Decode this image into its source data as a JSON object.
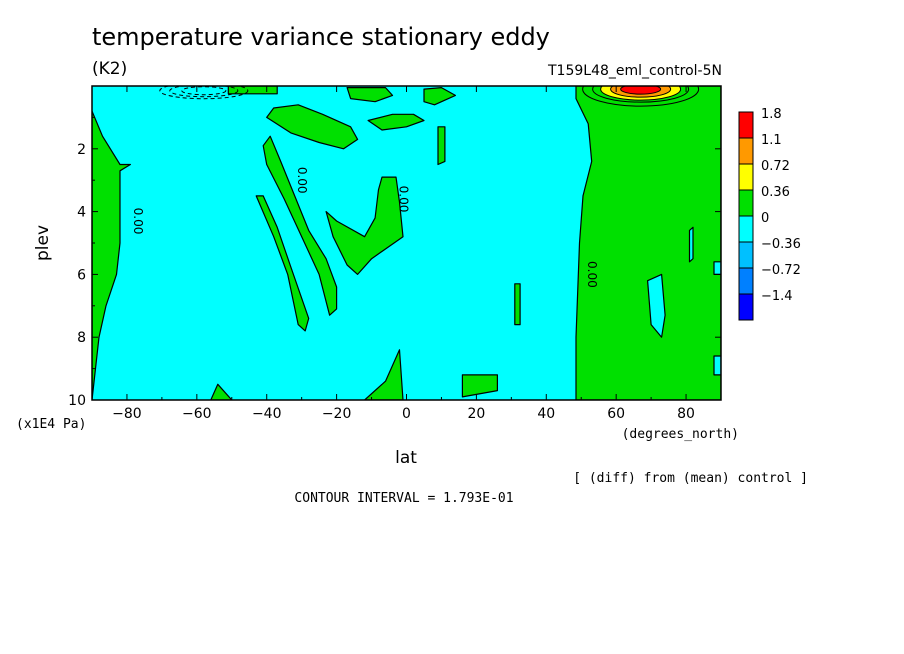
{
  "chart_data": {
    "type": "contour",
    "title": "temperature variance stationary eddy",
    "units": "(K2)",
    "experiment": "T159L48_eml_control-5N",
    "xlabel": "lat",
    "xunits": "(degrees_north)",
    "ylabel": "plev",
    "yunits": "(x1E4 Pa)",
    "xlim": [
      -90,
      90
    ],
    "ylim": [
      10,
      0
    ],
    "xticks": [
      -80,
      -60,
      -40,
      -20,
      0,
      20,
      40,
      60,
      80
    ],
    "yticks": [
      2,
      4,
      6,
      8,
      10
    ],
    "diff_note": "[ (diff) from (mean) control ]",
    "contour_interval": "CONTOUR INTERVAL = 1.793E-01",
    "contour_labels": [
      "0.00",
      "0.00",
      "0.00",
      "0.00"
    ],
    "colorbar": {
      "labels": [
        "1.8",
        "1.1",
        "0.72",
        "0.36",
        "0",
        "-0.36",
        "-0.72",
        "-1.4"
      ],
      "colors": [
        "#ff0000",
        "#ff9900",
        "#ffff00",
        "#00e000",
        "#00ffff",
        "#00c0ff",
        "#0080ff",
        "#0000ff"
      ]
    },
    "background_color": "#00ffff",
    "positive_color": "#00e000",
    "regions_positive": [
      {
        "name": "north-high-lat-block",
        "points": [
          [
            48.5,
            0
          ],
          [
            90,
            0
          ],
          [
            90,
            10
          ],
          [
            48.5,
            10
          ],
          [
            48.5,
            8
          ],
          [
            49.5,
            5
          ],
          [
            50.5,
            3.5
          ],
          [
            53,
            2.4
          ],
          [
            52,
            1.2
          ],
          [
            48.5,
            0.4
          ]
        ]
      },
      {
        "name": "south-pole-left",
        "points": [
          [
            -90,
            0.8
          ],
          [
            -87,
            1.6
          ],
          [
            -82,
            2.5
          ],
          [
            -79,
            2.5
          ],
          [
            -82,
            2.7
          ],
          [
            -82,
            5
          ],
          [
            -83,
            6
          ],
          [
            -86,
            7
          ],
          [
            -88,
            8
          ],
          [
            -89,
            9
          ],
          [
            -90,
            10
          ]
        ]
      },
      {
        "name": "left-diagonal-band",
        "points": [
          [
            -41,
            1.9
          ],
          [
            -39,
            1.6
          ],
          [
            -36,
            2.4
          ],
          [
            -32,
            3.5
          ],
          [
            -28,
            4.6
          ],
          [
            -23,
            5.5
          ],
          [
            -20,
            6.4
          ],
          [
            -20,
            7.1
          ],
          [
            -22,
            7.3
          ],
          [
            -25,
            6
          ],
          [
            -30,
            4.8
          ],
          [
            -35,
            3.6
          ],
          [
            -40,
            2.5
          ]
        ]
      },
      {
        "name": "lower-diagonal",
        "points": [
          [
            -43,
            3.5
          ],
          [
            -41,
            3.5
          ],
          [
            -37,
            4.5
          ],
          [
            -33,
            5.8
          ],
          [
            -28,
            7.4
          ],
          [
            -29,
            7.8
          ],
          [
            -31,
            7.6
          ],
          [
            -34,
            6
          ],
          [
            -38,
            4.8
          ]
        ]
      },
      {
        "name": "mid-tropical-blob",
        "points": [
          [
            -23,
            4
          ],
          [
            -20,
            4.3
          ],
          [
            -12,
            4.8
          ],
          [
            -9,
            4.2
          ],
          [
            -8,
            3.3
          ],
          [
            -7,
            2.9
          ],
          [
            -3,
            2.9
          ],
          [
            -2,
            3.7
          ],
          [
            -1,
            4.8
          ],
          [
            -10,
            5.5
          ],
          [
            -14,
            6
          ],
          [
            -17,
            5.7
          ],
          [
            -21,
            4.8
          ]
        ]
      },
      {
        "name": "upper-mid-blob",
        "points": [
          [
            -40,
            1
          ],
          [
            -38,
            0.7
          ],
          [
            -31,
            0.6
          ],
          [
            -24,
            0.9
          ],
          [
            -16,
            1.3
          ],
          [
            -14,
            1.7
          ],
          [
            -18,
            2
          ],
          [
            -25,
            1.8
          ],
          [
            -33,
            1.5
          ]
        ]
      },
      {
        "name": "upper-mid-right",
        "points": [
          [
            -11,
            1.1
          ],
          [
            -4,
            0.9
          ],
          [
            2,
            0.9
          ],
          [
            5,
            1.1
          ],
          [
            0,
            1.3
          ],
          [
            -7,
            1.4
          ]
        ]
      },
      {
        "name": "top-bar-left",
        "points": [
          [
            -51,
            0
          ],
          [
            -37,
            0
          ],
          [
            -37,
            0.25
          ],
          [
            -51,
            0.25
          ]
        ]
      },
      {
        "name": "top-bar-middle",
        "points": [
          [
            -17,
            0.05
          ],
          [
            -6,
            0.05
          ],
          [
            -4,
            0.3
          ],
          [
            -9,
            0.5
          ],
          [
            -16,
            0.4
          ]
        ]
      },
      {
        "name": "top-bar-right",
        "points": [
          [
            5,
            0.1
          ],
          [
            10,
            0.05
          ],
          [
            14,
            0.3
          ],
          [
            8,
            0.6
          ],
          [
            5,
            0.5
          ]
        ]
      },
      {
        "name": "small-vertical-right",
        "points": [
          [
            9,
            1.3
          ],
          [
            11,
            1.3
          ],
          [
            11,
            2.4
          ],
          [
            9,
            2.5
          ]
        ]
      },
      {
        "name": "small-vertical-20",
        "points": [
          [
            31,
            6.3
          ],
          [
            32.5,
            6.3
          ],
          [
            32.5,
            7.6
          ],
          [
            31,
            7.6
          ]
        ]
      },
      {
        "name": "bottom-blob-20",
        "points": [
          [
            16,
            9.2
          ],
          [
            26,
            9.2
          ],
          [
            26,
            9.7
          ],
          [
            16,
            9.9
          ]
        ]
      },
      {
        "name": "bottom-spike",
        "points": [
          [
            -12,
            10
          ],
          [
            -6,
            9.4
          ],
          [
            -2,
            8.4
          ],
          [
            -1,
            10
          ]
        ]
      },
      {
        "name": "bottom-left-bump",
        "points": [
          [
            -56,
            10
          ],
          [
            -54,
            9.5
          ],
          [
            -50,
            10
          ]
        ]
      }
    ],
    "regions_negative": [
      {
        "name": "high-lat-hole-1",
        "points": [
          [
            81,
            4.6
          ],
          [
            82,
            4.5
          ],
          [
            82,
            5.5
          ],
          [
            81,
            5.6
          ]
        ]
      },
      {
        "name": "high-lat-hole-2",
        "points": [
          [
            69,
            6.2
          ],
          [
            73,
            6
          ],
          [
            74,
            7.3
          ],
          [
            73,
            8
          ],
          [
            70,
            7.6
          ]
        ]
      },
      {
        "name": "high-lat-edge-notch",
        "points": [
          [
            88,
            5.6
          ],
          [
            90,
            5.6
          ],
          [
            90,
            6
          ],
          [
            88,
            6
          ]
        ]
      },
      {
        "name": "high-lat-edge-notch-2",
        "points": [
          [
            88,
            8.6
          ],
          [
            90,
            8.6
          ],
          [
            90,
            9.2
          ],
          [
            88,
            9.2
          ]
        ]
      }
    ],
    "max_feature": {
      "name": "polar-max-lobe",
      "center": [
        67,
        0.1
      ],
      "levels": [
        "#ffff00",
        "#ff9900",
        "#ff0000"
      ]
    },
    "dashed_feature": {
      "name": "dashed-negative-contours",
      "center": [
        -58,
        0.15
      ]
    }
  }
}
